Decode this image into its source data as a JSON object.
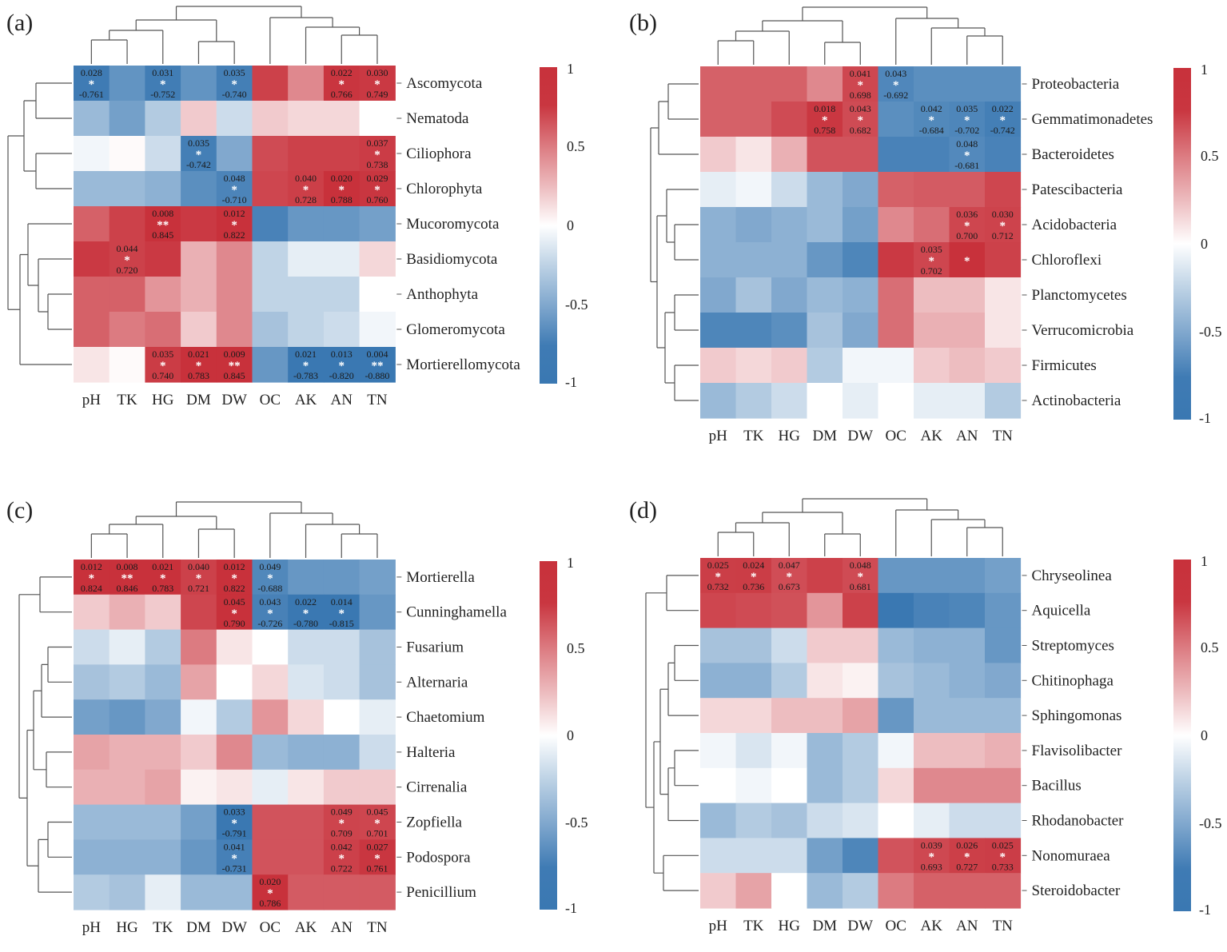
{
  "colors": {
    "neg": "#3a78b2",
    "mid": "#ffffff",
    "pos": "#c8313b",
    "line": "#555555",
    "text": "#222222"
  },
  "chart_data": [
    {
      "panel_label": "(a)",
      "type": "heatmap",
      "columns": [
        "pH",
        "TK",
        "HG",
        "DM",
        "DW",
        "OC",
        "AK",
        "AN",
        "TN"
      ],
      "rows": [
        "Ascomycota",
        "Nematoda",
        "Ciliophora",
        "Chlorophyta",
        "Mucoromycota",
        "Basidiomycota",
        "Anthophyta",
        "Glomeromycota",
        "Mortierellomycota"
      ],
      "values": [
        [
          -0.761,
          -0.62,
          -0.752,
          -0.62,
          -0.74,
          0.72,
          0.45,
          0.766,
          0.749
        ],
        [
          -0.4,
          -0.55,
          -0.3,
          0.2,
          -0.2,
          0.2,
          0.15,
          0.15,
          0.0
        ],
        [
          -0.05,
          0.02,
          -0.2,
          -0.742,
          -0.5,
          0.68,
          0.72,
          0.72,
          0.738
        ],
        [
          -0.4,
          -0.4,
          -0.45,
          -0.65,
          -0.71,
          0.7,
          0.728,
          0.788,
          0.76
        ],
        [
          0.6,
          0.72,
          0.845,
          0.75,
          0.822,
          -0.72,
          -0.6,
          -0.6,
          -0.55
        ],
        [
          0.75,
          0.72,
          0.75,
          0.3,
          0.45,
          -0.25,
          -0.1,
          -0.1,
          0.15
        ],
        [
          0.6,
          0.6,
          0.4,
          0.3,
          0.45,
          -0.25,
          -0.25,
          -0.25,
          0.0
        ],
        [
          0.6,
          0.5,
          0.55,
          0.2,
          0.45,
          -0.35,
          -0.25,
          -0.2,
          -0.05
        ],
        [
          0.1,
          0.02,
          0.74,
          0.783,
          0.845,
          -0.6,
          -0.783,
          -0.82,
          -0.88
        ]
      ],
      "annotations": [
        {
          "r": 0,
          "c": 0,
          "p": "0.028",
          "s": "*",
          "v": "-0.761"
        },
        {
          "r": 0,
          "c": 2,
          "p": "0.031",
          "s": "*",
          "v": "-0.752"
        },
        {
          "r": 0,
          "c": 4,
          "p": "0.035",
          "s": "*",
          "v": "-0.740"
        },
        {
          "r": 0,
          "c": 7,
          "p": "0.022",
          "s": "*",
          "v": "0.766"
        },
        {
          "r": 0,
          "c": 8,
          "p": "0.030",
          "s": "*",
          "v": "0.749"
        },
        {
          "r": 2,
          "c": 3,
          "p": "0.035",
          "s": "*",
          "v": "-0.742"
        },
        {
          "r": 2,
          "c": 8,
          "p": "0.037",
          "s": "*",
          "v": "0.738"
        },
        {
          "r": 3,
          "c": 4,
          "p": "0.048",
          "s": "*",
          "v": "-0.710"
        },
        {
          "r": 3,
          "c": 6,
          "p": "0.040",
          "s": "*",
          "v": "0.728"
        },
        {
          "r": 3,
          "c": 7,
          "p": "0.020",
          "s": "*",
          "v": "0.788"
        },
        {
          "r": 3,
          "c": 8,
          "p": "0.029",
          "s": "*",
          "v": "0.760"
        },
        {
          "r": 4,
          "c": 2,
          "p": "0.008",
          "s": "**",
          "v": "0.845"
        },
        {
          "r": 4,
          "c": 4,
          "p": "0.012",
          "s": "*",
          "v": "0.822"
        },
        {
          "r": 5,
          "c": 1,
          "p": "0.044",
          "s": "*",
          "v": "0.720"
        },
        {
          "r": 8,
          "c": 2,
          "p": "0.035",
          "s": "*",
          "v": "0.740"
        },
        {
          "r": 8,
          "c": 3,
          "p": "0.021",
          "s": "*",
          "v": "0.783"
        },
        {
          "r": 8,
          "c": 4,
          "p": "0.009",
          "s": "**",
          "v": "0.845"
        },
        {
          "r": 8,
          "c": 6,
          "p": "0.021",
          "s": "*",
          "v": "-0.783"
        },
        {
          "r": 8,
          "c": 7,
          "p": "0.013",
          "s": "*",
          "v": "-0.820"
        },
        {
          "r": 8,
          "c": 8,
          "p": "0.004",
          "s": "**",
          "v": "-0.880"
        }
      ],
      "colorbar_ticks": [
        "1",
        "0.5",
        "0",
        "-0.5",
        "-1"
      ]
    },
    {
      "panel_label": "(b)",
      "type": "heatmap",
      "columns": [
        "pH",
        "TK",
        "HG",
        "DM",
        "DW",
        "OC",
        "AK",
        "AN",
        "TN"
      ],
      "rows": [
        "Proteobacteria",
        "Gemmatimonadetes",
        "Bacteroidetes",
        "Patescibacteria",
        "Acidobacteria",
        "Chloroflexi",
        "Planctomycetes",
        "Verrucomicrobia",
        "Firmicutes",
        "Actinobacteria"
      ],
      "values": [
        [
          0.6,
          0.6,
          0.6,
          0.45,
          0.698,
          -0.692,
          -0.65,
          -0.65,
          -0.65
        ],
        [
          0.6,
          0.6,
          0.68,
          0.758,
          0.682,
          -0.65,
          -0.684,
          -0.702,
          -0.742
        ],
        [
          0.2,
          0.1,
          0.3,
          0.65,
          0.65,
          -0.72,
          -0.72,
          -0.681,
          -0.72
        ],
        [
          -0.1,
          -0.05,
          -0.2,
          -0.4,
          -0.5,
          0.6,
          0.62,
          0.62,
          0.7
        ],
        [
          -0.45,
          -0.5,
          -0.45,
          -0.4,
          -0.55,
          0.45,
          0.55,
          0.7,
          0.712
        ],
        [
          -0.45,
          -0.45,
          -0.45,
          -0.6,
          -0.7,
          0.75,
          0.702,
          0.8,
          0.72
        ],
        [
          -0.5,
          -0.35,
          -0.5,
          -0.4,
          -0.45,
          0.55,
          0.25,
          0.25,
          0.1
        ],
        [
          -0.7,
          -0.7,
          -0.65,
          -0.35,
          -0.5,
          0.55,
          0.3,
          0.3,
          0.1
        ],
        [
          0.2,
          0.15,
          0.2,
          -0.3,
          -0.05,
          -0.05,
          0.2,
          0.25,
          0.2
        ],
        [
          -0.4,
          -0.3,
          -0.2,
          0.0,
          -0.1,
          0.0,
          -0.1,
          -0.1,
          -0.3
        ]
      ],
      "annotations": [
        {
          "r": 0,
          "c": 4,
          "p": "0.041",
          "s": "*",
          "v": "0.698"
        },
        {
          "r": 0,
          "c": 5,
          "p": "0.043",
          "s": "*",
          "v": "-0.692"
        },
        {
          "r": 1,
          "c": 3,
          "p": "0.018",
          "s": "*",
          "v": "0.758"
        },
        {
          "r": 1,
          "c": 4,
          "p": "0.043",
          "s": "*",
          "v": "0.682"
        },
        {
          "r": 1,
          "c": 6,
          "p": "0.042",
          "s": "*",
          "v": "-0.684"
        },
        {
          "r": 1,
          "c": 7,
          "p": "0.035",
          "s": "*",
          "v": "-0.702"
        },
        {
          "r": 1,
          "c": 8,
          "p": "0.022",
          "s": "*",
          "v": "-0.742"
        },
        {
          "r": 2,
          "c": 7,
          "p": "0.048",
          "s": "*",
          "v": "-0.681"
        },
        {
          "r": 4,
          "c": 7,
          "p": "0.036",
          "s": "*",
          "v": "0.700"
        },
        {
          "r": 4,
          "c": 8,
          "p": "0.030",
          "s": "*",
          "v": "0.712"
        },
        {
          "r": 5,
          "c": 6,
          "p": "0.035",
          "s": "*",
          "v": "0.702"
        },
        {
          "r": 5,
          "c": 7,
          "p": "",
          "s": "*",
          "v": ""
        }
      ],
      "colorbar_ticks": [
        "1",
        "0.5",
        "0",
        "-0.5",
        "-1"
      ]
    },
    {
      "panel_label": "(c)",
      "type": "heatmap",
      "columns": [
        "pH",
        "HG",
        "TK",
        "DM",
        "DW",
        "OC",
        "AK",
        "AN",
        "TN"
      ],
      "rows": [
        "Mortierella",
        "Cunninghamella",
        "Fusarium",
        "Alternaria",
        "Chaetomium",
        "Halteria",
        "Cirrenalia",
        "Zopfiella",
        "Podospora",
        "Penicillium"
      ],
      "values": [
        [
          0.824,
          0.846,
          0.783,
          0.721,
          0.822,
          -0.688,
          -0.6,
          -0.6,
          -0.55
        ],
        [
          0.2,
          0.3,
          0.2,
          0.7,
          0.79,
          -0.726,
          -0.78,
          -0.815,
          -0.6
        ],
        [
          -0.2,
          -0.1,
          -0.3,
          0.5,
          0.1,
          0.0,
          -0.2,
          -0.2,
          -0.35
        ],
        [
          -0.35,
          -0.3,
          -0.4,
          0.35,
          0.0,
          0.15,
          -0.15,
          -0.2,
          -0.35
        ],
        [
          -0.55,
          -0.6,
          -0.5,
          -0.05,
          -0.3,
          0.4,
          0.15,
          0.0,
          -0.1
        ],
        [
          0.35,
          0.3,
          0.3,
          0.2,
          0.45,
          -0.4,
          -0.45,
          -0.45,
          -0.2
        ],
        [
          0.3,
          0.3,
          0.35,
          0.05,
          0.1,
          -0.1,
          0.1,
          0.2,
          0.2
        ],
        [
          -0.4,
          -0.4,
          -0.4,
          -0.55,
          -0.791,
          0.65,
          0.65,
          0.709,
          0.701
        ],
        [
          -0.45,
          -0.45,
          -0.45,
          -0.6,
          -0.731,
          0.65,
          0.65,
          0.722,
          0.761
        ],
        [
          -0.3,
          -0.35,
          -0.1,
          -0.4,
          -0.4,
          0.786,
          0.62,
          0.62,
          0.62
        ]
      ],
      "annotations": [
        {
          "r": 0,
          "c": 0,
          "p": "0.012",
          "s": "*",
          "v": "0.824"
        },
        {
          "r": 0,
          "c": 1,
          "p": "0.008",
          "s": "**",
          "v": "0.846"
        },
        {
          "r": 0,
          "c": 2,
          "p": "0.021",
          "s": "*",
          "v": "0.783"
        },
        {
          "r": 0,
          "c": 3,
          "p": "0.040",
          "s": "*",
          "v": "0.721"
        },
        {
          "r": 0,
          "c": 4,
          "p": "0.012",
          "s": "*",
          "v": "0.822"
        },
        {
          "r": 0,
          "c": 5,
          "p": "0.049",
          "s": "*",
          "v": "-0.688"
        },
        {
          "r": 1,
          "c": 4,
          "p": "0.045",
          "s": "*",
          "v": "0.790"
        },
        {
          "r": 1,
          "c": 5,
          "p": "0.043",
          "s": "*",
          "v": "-0.726"
        },
        {
          "r": 1,
          "c": 6,
          "p": "0.022",
          "s": "*",
          "v": "-0.780"
        },
        {
          "r": 1,
          "c": 7,
          "p": "0.014",
          "s": "*",
          "v": "-0.815"
        },
        {
          "r": 7,
          "c": 4,
          "p": "0.033",
          "s": "*",
          "v": "-0.791"
        },
        {
          "r": 7,
          "c": 7,
          "p": "0.049",
          "s": "*",
          "v": "0.709"
        },
        {
          "r": 7,
          "c": 8,
          "p": "0.045",
          "s": "*",
          "v": "0.701"
        },
        {
          "r": 8,
          "c": 4,
          "p": "0.041",
          "s": "*",
          "v": "-0.731"
        },
        {
          "r": 8,
          "c": 7,
          "p": "0.042",
          "s": "*",
          "v": "0.722"
        },
        {
          "r": 8,
          "c": 8,
          "p": "0.027",
          "s": "*",
          "v": "0.761"
        },
        {
          "r": 9,
          "c": 5,
          "p": "0.020",
          "s": "*",
          "v": "0.786"
        }
      ],
      "colorbar_ticks": [
        "1",
        "0.5",
        "0",
        "-0.5",
        "-1"
      ]
    },
    {
      "panel_label": "(d)",
      "type": "heatmap",
      "columns": [
        "pH",
        "TK",
        "HG",
        "DM",
        "DW",
        "OC",
        "AK",
        "AN",
        "TN"
      ],
      "rows": [
        "Chryseolinea",
        "Aquicella",
        "Streptomyces",
        "Chitinophaga",
        "Sphingomonas",
        "Flavisolibacter",
        "Bacillus",
        "Rhodanobacter",
        "Nonomuraea",
        "Steroidobacter"
      ],
      "values": [
        [
          0.732,
          0.736,
          0.673,
          0.72,
          0.681,
          -0.6,
          -0.6,
          -0.6,
          -0.55
        ],
        [
          0.7,
          0.68,
          0.66,
          0.4,
          0.72,
          -0.82,
          -0.72,
          -0.7,
          -0.6
        ],
        [
          -0.35,
          -0.35,
          -0.2,
          0.2,
          0.2,
          -0.4,
          -0.45,
          -0.45,
          -0.6
        ],
        [
          -0.45,
          -0.45,
          -0.3,
          0.1,
          0.05,
          -0.35,
          -0.4,
          -0.45,
          -0.5
        ],
        [
          0.15,
          0.15,
          0.25,
          0.25,
          0.35,
          -0.6,
          -0.4,
          -0.4,
          -0.4
        ],
        [
          -0.05,
          -0.15,
          -0.05,
          -0.4,
          -0.3,
          -0.05,
          0.25,
          0.25,
          0.3
        ],
        [
          0.0,
          -0.05,
          0.0,
          -0.4,
          -0.3,
          0.15,
          0.45,
          0.45,
          0.45
        ],
        [
          -0.4,
          -0.3,
          -0.35,
          -0.2,
          -0.15,
          0.0,
          -0.1,
          -0.2,
          -0.2
        ],
        [
          -0.2,
          -0.2,
          -0.2,
          -0.55,
          -0.7,
          0.65,
          0.693,
          0.727,
          0.733
        ],
        [
          0.2,
          0.35,
          0.0,
          -0.4,
          -0.3,
          0.5,
          0.6,
          0.6,
          0.6
        ]
      ],
      "annotations": [
        {
          "r": 0,
          "c": 0,
          "p": "0.025",
          "s": "*",
          "v": "0.732"
        },
        {
          "r": 0,
          "c": 1,
          "p": "0.024",
          "s": "*",
          "v": "0.736"
        },
        {
          "r": 0,
          "c": 2,
          "p": "0.047",
          "s": "*",
          "v": "0.673"
        },
        {
          "r": 0,
          "c": 4,
          "p": "0.048",
          "s": "*",
          "v": "0.681"
        },
        {
          "r": 8,
          "c": 6,
          "p": "0.039",
          "s": "*",
          "v": "0.693"
        },
        {
          "r": 8,
          "c": 7,
          "p": "0.026",
          "s": "*",
          "v": "0.727"
        },
        {
          "r": 8,
          "c": 8,
          "p": "0.025",
          "s": "*",
          "v": "0.733"
        }
      ],
      "colorbar_ticks": [
        "1",
        "0.5",
        "0",
        "-0.5",
        "-1"
      ]
    }
  ]
}
